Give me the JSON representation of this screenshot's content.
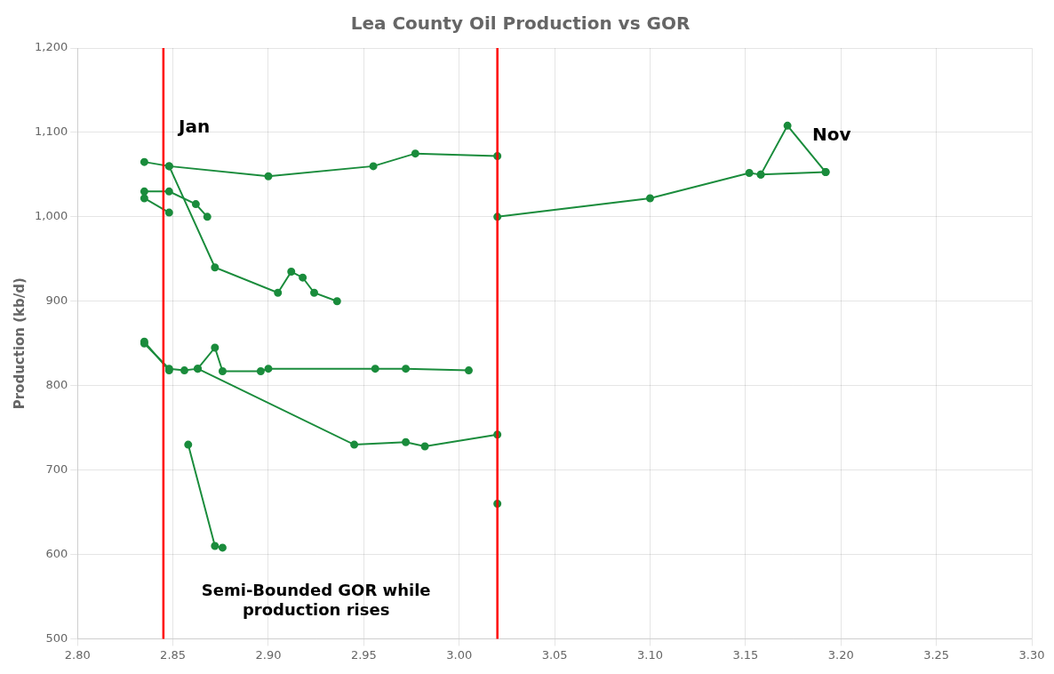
{
  "chart_data": {
    "type": "line",
    "title": "Lea County Oil Production vs GOR",
    "ylabel": "Production (kb/d)",
    "xlim": [
      2.8,
      3.3
    ],
    "ylim": [
      500,
      1200
    ],
    "xticks": [
      {
        "value": 2.8,
        "label": "2.80"
      },
      2.85,
      {
        "value": 2.9,
        "label": "2.90"
      },
      2.95,
      {
        "value": 3.0,
        "label": "3.00"
      },
      3.05,
      {
        "value": 3.1,
        "label": "3.10"
      },
      3.15,
      {
        "value": 3.2,
        "label": "3.20"
      },
      3.25,
      {
        "value": 3.3,
        "label": "3.30"
      }
    ],
    "yticks": [
      500,
      600,
      700,
      800,
      900,
      {
        "value": 1000,
        "label": "1,000"
      },
      {
        "value": 1100,
        "label": "1,100"
      },
      {
        "value": 1200,
        "label": "1,200"
      }
    ],
    "grid": true,
    "color": "#1a8c3c",
    "marker": "circle",
    "series": [
      {
        "x": [
          2.835,
          2.848,
          2.9,
          2.955,
          2.977,
          3.02
        ],
        "values": [
          1065,
          1060,
          1048,
          1060,
          1075,
          1072
        ]
      },
      {
        "x": [
          2.835,
          2.848,
          2.862,
          2.868
        ],
        "values": [
          1030,
          1030,
          1015,
          1000
        ]
      },
      {
        "x": [
          2.835,
          2.848
        ],
        "values": [
          1022,
          1005
        ]
      },
      {
        "x": [
          2.848,
          2.872,
          2.905,
          2.912,
          2.918,
          2.924,
          2.936
        ],
        "values": [
          1060,
          940,
          910,
          935,
          928,
          910,
          900
        ]
      },
      {
        "x": [
          2.835,
          2.848,
          2.856,
          2.863,
          2.872,
          2.876,
          2.896,
          2.9,
          2.956,
          2.972,
          3.005
        ],
        "values": [
          850,
          820,
          818,
          820,
          845,
          817,
          817,
          820,
          820,
          820,
          818
        ]
      },
      {
        "x": [
          2.835,
          2.848
        ],
        "values": [
          852,
          818
        ]
      },
      {
        "x": [
          2.858,
          2.872,
          2.876
        ],
        "values": [
          730,
          610,
          608
        ]
      },
      {
        "x": [
          2.863,
          2.945,
          2.972,
          2.982,
          3.02
        ],
        "values": [
          820,
          730,
          733,
          728,
          742
        ]
      },
      {
        "x": [
          3.02
        ],
        "values": [
          660
        ]
      },
      {
        "x": [
          3.02,
          3.1,
          3.152,
          3.158,
          3.192
        ],
        "values": [
          1000,
          1022,
          1052,
          1050,
          1053
        ]
      },
      {
        "x": [
          3.158,
          3.172,
          3.192
        ],
        "values": [
          1050,
          1108,
          1053
        ]
      }
    ],
    "vlines": [
      {
        "value": 2.845,
        "color": "red"
      },
      {
        "value": 3.02,
        "color": "red"
      }
    ],
    "annotations": [
      {
        "text": "Jan",
        "x": 2.853,
        "y": 1100
      },
      {
        "text": "Nov",
        "x": 3.185,
        "y": 1090
      },
      {
        "text": "Semi-Bounded GOR while\nproduction rises",
        "x": 2.925,
        "y": 565
      }
    ]
  }
}
